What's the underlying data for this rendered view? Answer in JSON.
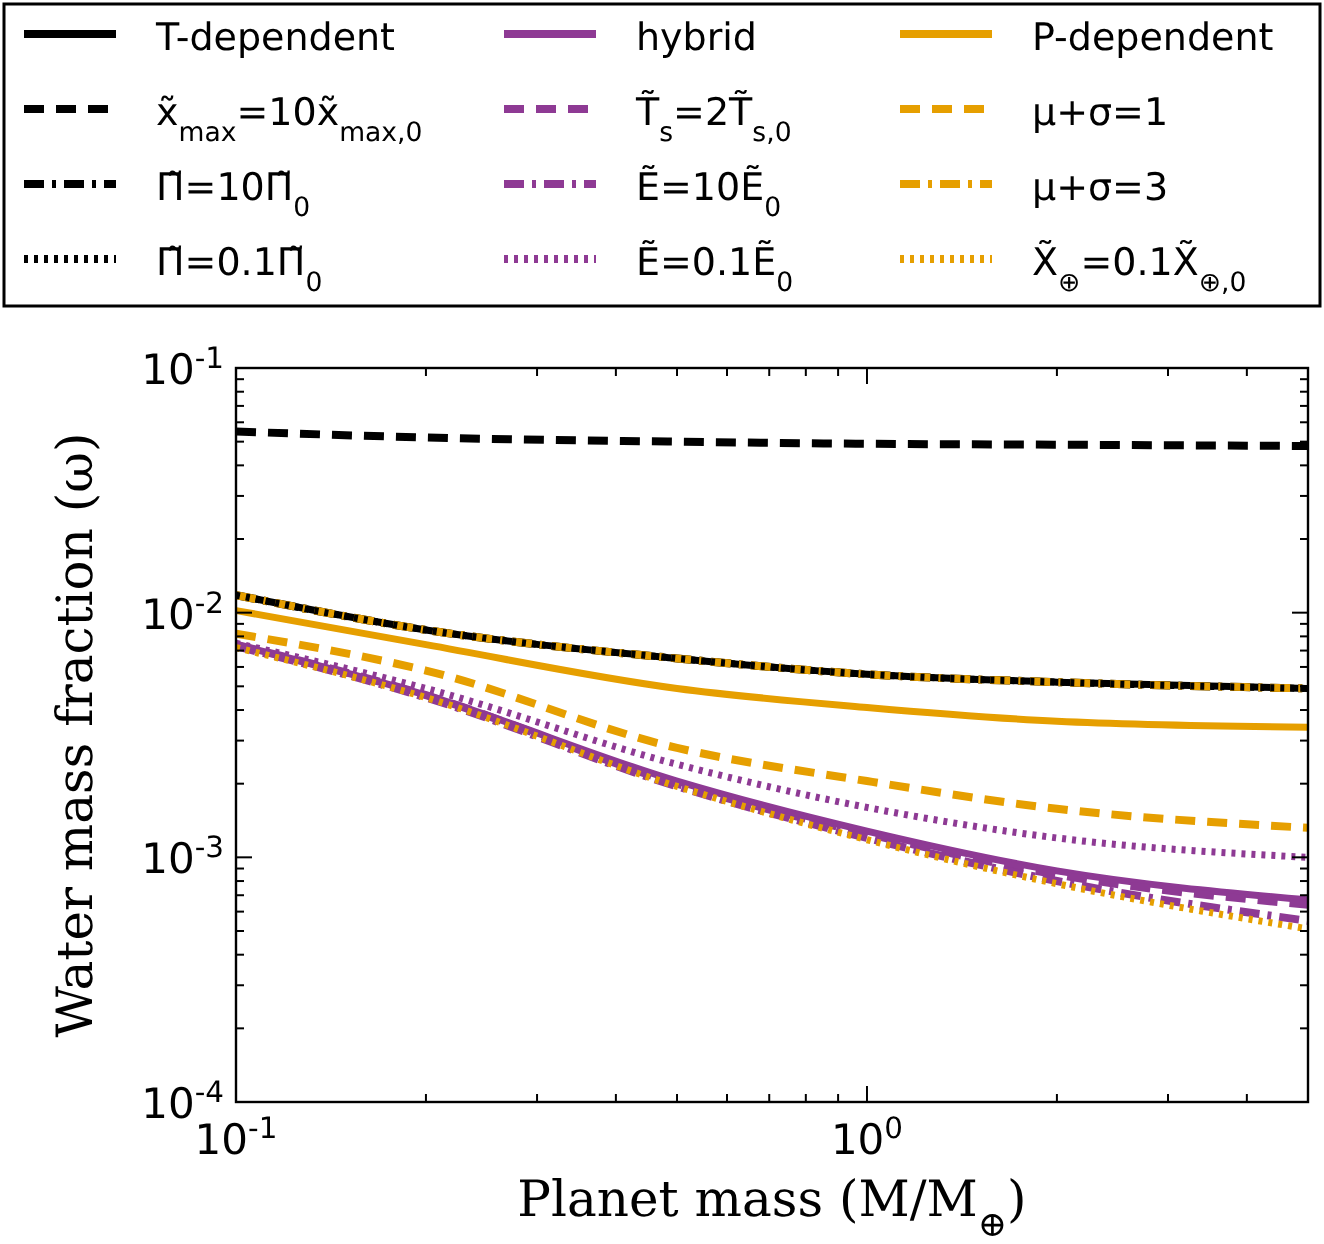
{
  "chart_data": {
    "type": "line",
    "xlabel": "Planet mass (M/M$_{⊕}$)",
    "ylabel": "Water mass fraction (ω)",
    "log": "xy",
    "legend": "top",
    "grid": false,
    "x": [
      0.1,
      0.2,
      0.5,
      1,
      2,
      5
    ],
    "xlim": [
      0.1,
      5
    ],
    "ylim": [
      0.0001,
      0.1
    ],
    "xticks": [
      {
        "value": 0.1,
        "label": "10$^{-1}$"
      },
      {
        "value": 0.2,
        "label": null
      },
      {
        "value": 0.3,
        "label": null
      },
      {
        "value": 0.4,
        "label": null
      },
      {
        "value": 0.5,
        "label": null
      },
      {
        "value": 0.6,
        "label": null
      },
      {
        "value": 0.7,
        "label": null
      },
      {
        "value": 0.8,
        "label": null
      },
      {
        "value": 0.9,
        "label": null
      },
      {
        "value": 1,
        "label": "10$^{0}$"
      },
      {
        "value": 2,
        "label": null
      },
      {
        "value": 3,
        "label": null
      },
      {
        "value": 4,
        "label": null
      }
    ],
    "yticks": [
      {
        "value": 0.0001,
        "label": "10$^{-4}$"
      },
      {
        "value": 0.0002,
        "label": null
      },
      {
        "value": 0.0003,
        "label": null
      },
      {
        "value": 0.0004,
        "label": null
      },
      {
        "value": 0.0005,
        "label": null
      },
      {
        "value": 0.0006,
        "label": null
      },
      {
        "value": 0.0007,
        "label": null
      },
      {
        "value": 0.0008,
        "label": null
      },
      {
        "value": 0.0009,
        "label": null
      },
      {
        "value": 0.001,
        "label": "10$^{-3}$"
      },
      {
        "value": 0.002,
        "label": null
      },
      {
        "value": 0.003,
        "label": null
      },
      {
        "value": 0.004,
        "label": null
      },
      {
        "value": 0.005,
        "label": null
      },
      {
        "value": 0.006,
        "label": null
      },
      {
        "value": 0.007,
        "label": null
      },
      {
        "value": 0.008,
        "label": null
      },
      {
        "value": 0.009,
        "label": null
      },
      {
        "value": 0.01,
        "label": "10$^{-2}$"
      },
      {
        "value": 0.02,
        "label": null
      },
      {
        "value": 0.03,
        "label": null
      },
      {
        "value": 0.04,
        "label": null
      },
      {
        "value": 0.05,
        "label": null
      },
      {
        "value": 0.06,
        "label": null
      },
      {
        "value": 0.07,
        "label": null
      },
      {
        "value": 0.08,
        "label": null
      },
      {
        "value": 0.09,
        "label": null
      },
      {
        "value": 0.1,
        "label": "10$^{-1}$"
      }
    ],
    "series": [
      {
        "name": "T-dependent",
        "color": "#000000",
        "line_style": "solid",
        "values": [
          0.0118,
          0.0085,
          0.0065,
          0.0056,
          0.0052,
          0.0049
        ]
      },
      {
        "name": "x̃$_{max}$=10x̃$_{max,0}$",
        "color": "#000000",
        "line_style": "dashed",
        "values": [
          0.055,
          0.052,
          0.05,
          0.049,
          0.0486,
          0.048
        ]
      },
      {
        "name": "Π̃=10Π̃$_{0}$",
        "color": "#000000",
        "line_style": "dashdot",
        "values": [
          0.0118,
          0.0085,
          0.0065,
          0.0056,
          0.0052,
          0.0049
        ]
      },
      {
        "name": "Π̃=0.1Π̃$_{0}$",
        "color": "#000000",
        "line_style": "dotted",
        "values": [
          0.0118,
          0.0085,
          0.0065,
          0.0056,
          0.0052,
          0.0049
        ]
      },
      {
        "name": "hybrid",
        "color": "#8e3a94",
        "line_style": "solid",
        "values": [
          0.0074,
          0.0046,
          0.00205,
          0.00128,
          0.00088,
          0.00067
        ]
      },
      {
        "name": "T̃$_{s}$=2T̃$_{s,0}$",
        "color": "#8e3a94",
        "line_style": "dashed",
        "values": [
          0.0074,
          0.0046,
          0.002,
          0.00125,
          0.00085,
          0.00064
        ]
      },
      {
        "name": "Ẽ=10Ẽ$_{0}$",
        "color": "#8e3a94",
        "line_style": "dashdot",
        "values": [
          0.0073,
          0.0045,
          0.00195,
          0.0012,
          0.0008,
          0.00055
        ]
      },
      {
        "name": "Ẽ=0.1Ẽ$_{0}$",
        "color": "#8e3a94",
        "line_style": "dotted",
        "values": [
          0.0075,
          0.0049,
          0.0024,
          0.0016,
          0.0012,
          0.001
        ]
      },
      {
        "name": "P-dependent",
        "color": "#e69f00",
        "line_style": "solid",
        "values": [
          0.0102,
          0.0074,
          0.0049,
          0.0041,
          0.0036,
          0.0034
        ]
      },
      {
        "name": "μ+σ=1",
        "color": "#e69f00",
        "line_style": "dashed",
        "values": [
          0.0082,
          0.0058,
          0.0028,
          0.00205,
          0.00158,
          0.00132
        ]
      },
      {
        "name": "μ+σ=3",
        "color": "#e69f00",
        "line_style": "dashdot",
        "values": [
          0.0118,
          0.0085,
          0.0065,
          0.0056,
          0.0052,
          0.0049
        ]
      },
      {
        "name": "X̃$_{⊕}$=0.1X̃$_{⊕,0}$",
        "color": "#e69f00",
        "line_style": "dotted",
        "values": [
          0.0072,
          0.0045,
          0.00195,
          0.00118,
          0.00078,
          0.00051
        ]
      }
    ]
  }
}
